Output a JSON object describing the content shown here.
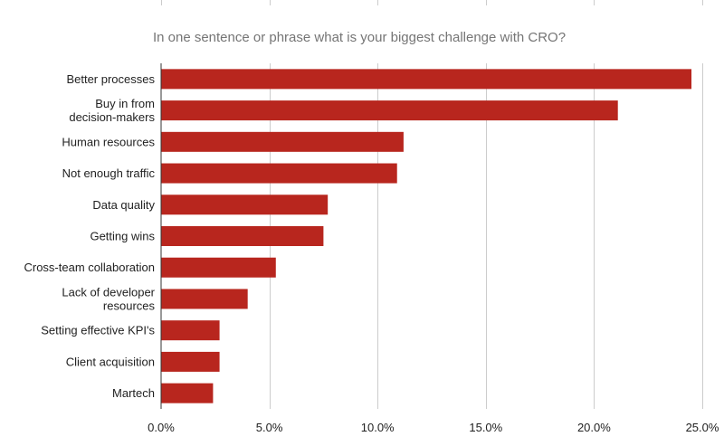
{
  "chart_data": {
    "type": "bar",
    "orientation": "horizontal",
    "title": "In one sentence or phrase what is your biggest challenge with CRO?",
    "xlabel": "",
    "ylabel": "",
    "categories": [
      [
        "Better processes"
      ],
      [
        "Buy in from",
        "decision-makers"
      ],
      [
        "Human resources"
      ],
      [
        "Not enough traffic"
      ],
      [
        "Data quality"
      ],
      [
        "Getting wins"
      ],
      [
        "Cross-team collaboration"
      ],
      [
        "Lack of developer",
        "resources"
      ],
      [
        "Setting effective KPI's"
      ],
      [
        "Client acquisition"
      ],
      [
        "Martech"
      ]
    ],
    "values": [
      24.5,
      21.1,
      11.2,
      10.9,
      7.7,
      7.5,
      5.3,
      4.0,
      2.7,
      2.7,
      2.4
    ],
    "xlim": [
      0,
      25
    ],
    "xticks": [
      0,
      5,
      10,
      15,
      20,
      25
    ],
    "xtick_labels": [
      "0.0%",
      "5.0%",
      "10.0%",
      "15.0%",
      "20.0%",
      "25.0%"
    ],
    "grid": true,
    "legend": "none",
    "bar_color": "#b8261e"
  }
}
